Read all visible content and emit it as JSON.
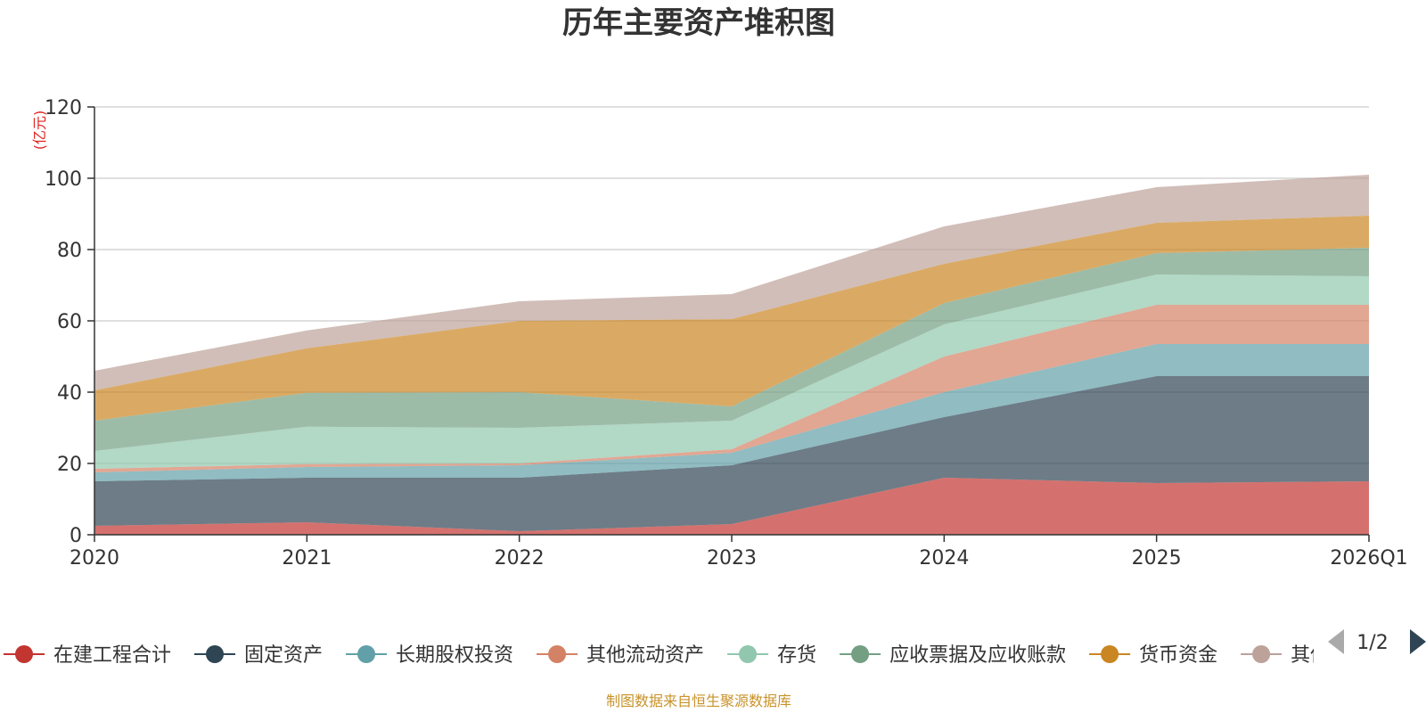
{
  "chart_data": {
    "type": "area",
    "stacked": true,
    "title": "历年主要资产堆积图",
    "unit_label": "(亿元)",
    "x": [
      "2020",
      "2021",
      "2022",
      "2023",
      "2024",
      "2025",
      "2026Q1"
    ],
    "ylim": [
      0,
      120
    ],
    "yticks": [
      0,
      20,
      40,
      60,
      80,
      100,
      120
    ],
    "grid": true,
    "series": [
      {
        "name": "在建工程合计",
        "color": "#c23531",
        "values": [
          2.5,
          3.5,
          1.0,
          3.0,
          16.0,
          14.5,
          15.0
        ]
      },
      {
        "name": "固定资产",
        "color": "#2f4554",
        "values": [
          12.5,
          12.5,
          15.0,
          16.5,
          17.0,
          30.0,
          29.5
        ]
      },
      {
        "name": "长期股权投资",
        "color": "#61a0a8",
        "values": [
          2.5,
          3.0,
          3.5,
          3.5,
          7.0,
          9.0,
          9.0
        ]
      },
      {
        "name": "其他流动资产",
        "color": "#d48265",
        "values": [
          1.0,
          0.8,
          0.5,
          1.0,
          10.0,
          11.0,
          11.0
        ]
      },
      {
        "name": "存货",
        "color": "#91c7ae",
        "values": [
          5.0,
          10.5,
          10.0,
          8.0,
          9.0,
          8.5,
          8.0
        ]
      },
      {
        "name": "应收票据及应收账款",
        "color": "#749f83",
        "values": [
          8.5,
          9.5,
          10.0,
          4.0,
          6.0,
          6.0,
          8.0
        ]
      },
      {
        "name": "货币资金",
        "color": "#ca8622",
        "values": [
          8.5,
          12.5,
          20.0,
          24.5,
          11.0,
          8.5,
          9.0
        ]
      },
      {
        "name": "其他",
        "color": "#bda29a",
        "values": [
          5.5,
          5.0,
          5.5,
          7.0,
          10.5,
          10.0,
          11.5
        ]
      }
    ],
    "legend": {
      "position": "bottom",
      "page": "1/2"
    },
    "source_note": "制图数据来自恒生聚源数据库"
  }
}
